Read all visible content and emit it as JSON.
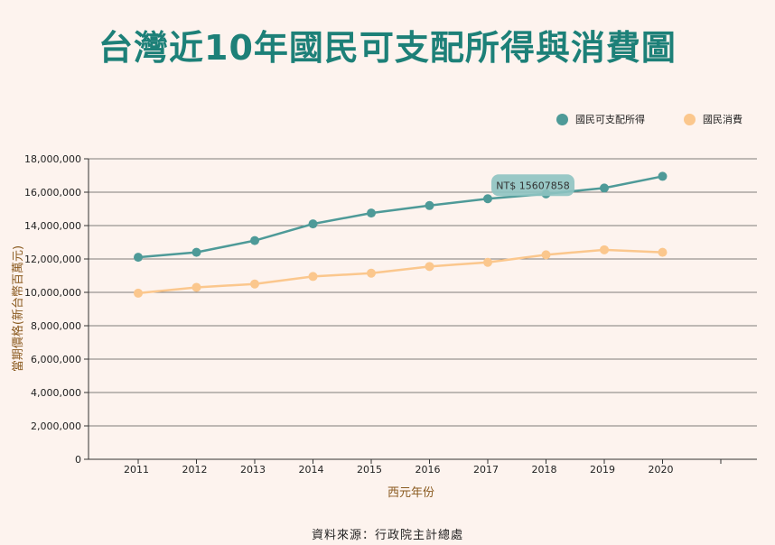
{
  "page": {
    "title": "台灣近10年國民可支配所得與消費圖",
    "source": "資料來源：行政院主計總處"
  },
  "colors": {
    "title": "#1d8078",
    "income": "#4e9a98",
    "consumption": "#fbc78d",
    "axis_label": "#8a5a1f",
    "background": "#fdf3ee",
    "tooltip_bg": "#8ec3c1"
  },
  "tooltip": {
    "text": "NT$ 15607858",
    "series_index": 0,
    "point_index": 6
  },
  "chart_data": {
    "type": "line",
    "xlabel": "西元年份",
    "ylabel": "當期價格(新台幣百萬元)",
    "categories": [
      "2011",
      "2012",
      "2013",
      "2014",
      "2015",
      "2016",
      "2017",
      "2018",
      "2019",
      "2020"
    ],
    "ylim": [
      0,
      18000000
    ],
    "yticks": [
      0,
      2000000,
      4000000,
      6000000,
      8000000,
      10000000,
      12000000,
      14000000,
      16000000,
      18000000
    ],
    "ytick_labels": [
      "0",
      "2,000,000",
      "4,000,000",
      "6,000,000",
      "8,000,000",
      "10,000,000",
      "12,000,000",
      "14,000,000",
      "16,000,000",
      "18,000,000"
    ],
    "grid": true,
    "legend_position": "top-right",
    "series": [
      {
        "name": "國民可支配所得",
        "color": "#4e9a98",
        "values": [
          12100000,
          12400000,
          13100000,
          14100000,
          14750000,
          15200000,
          15607858,
          15900000,
          16250000,
          16950000
        ]
      },
      {
        "name": "國民消費",
        "color": "#fbc78d",
        "values": [
          9950000,
          10300000,
          10500000,
          10950000,
          11150000,
          11550000,
          11800000,
          12250000,
          12550000,
          12400000
        ]
      }
    ]
  }
}
